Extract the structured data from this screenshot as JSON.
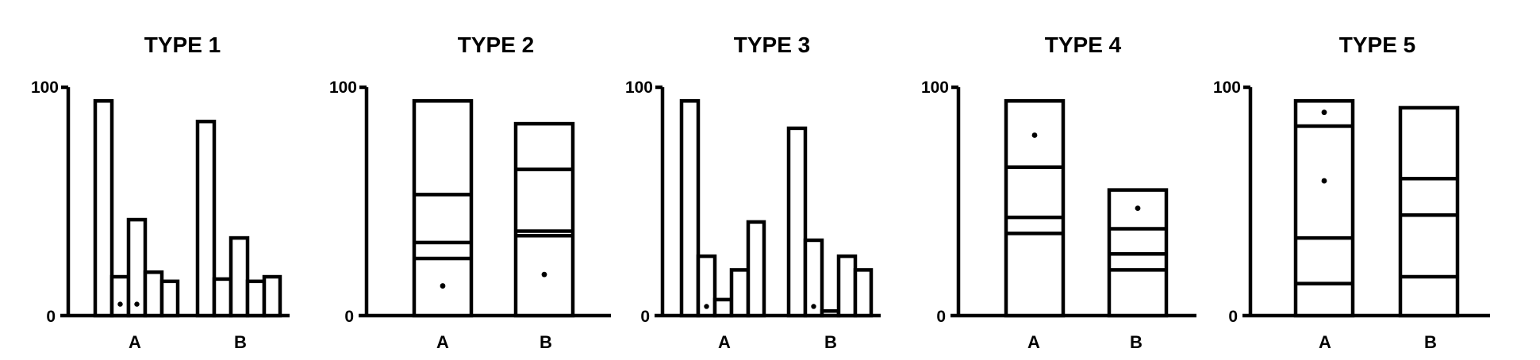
{
  "chart_data": [
    {
      "type": "bar",
      "style": "grouped",
      "title": "TYPE 1",
      "ylim": [
        0,
        100
      ],
      "yticks": [
        "0",
        "100"
      ],
      "categories": [
        "A",
        "B"
      ],
      "groups": [
        {
          "label": "A",
          "bars": [
            {
              "value": 94
            },
            {
              "value": 17,
              "dot": {
                "y": 5
              }
            },
            {
              "value": 42,
              "dot": {
                "y": 5
              }
            },
            {
              "value": 19
            },
            {
              "value": 15
            }
          ]
        },
        {
          "label": "B",
          "bars": [
            {
              "value": 85
            },
            {
              "value": 16
            },
            {
              "value": 34
            },
            {
              "value": 15
            },
            {
              "value": 17
            }
          ]
        }
      ]
    },
    {
      "type": "bar",
      "style": "stacked",
      "title": "TYPE 2",
      "ylim": [
        0,
        100
      ],
      "yticks": [
        "0",
        "100"
      ],
      "categories": [
        "A",
        "B"
      ],
      "groups": [
        {
          "label": "A",
          "total": 94,
          "dividers": [
            25,
            32,
            53
          ],
          "dots": [
            13
          ]
        },
        {
          "label": "B",
          "total": 84,
          "dividers": [
            35,
            37,
            64
          ],
          "dots": [
            18
          ]
        }
      ]
    },
    {
      "type": "bar",
      "style": "grouped",
      "title": "TYPE 3",
      "ylim": [
        0,
        100
      ],
      "yticks": [
        "0",
        "100"
      ],
      "categories": [
        "A",
        "B"
      ],
      "groups": [
        {
          "label": "A",
          "bars": [
            {
              "value": 94
            },
            {
              "value": 26,
              "dot": {
                "y": 4
              }
            },
            {
              "value": 7
            },
            {
              "value": 20
            },
            {
              "value": 41
            }
          ]
        },
        {
          "label": "B",
          "bars": [
            {
              "value": 82
            },
            {
              "value": 33,
              "dot": {
                "y": 4
              }
            },
            {
              "value": 2
            },
            {
              "value": 26
            },
            {
              "value": 20
            }
          ]
        }
      ]
    },
    {
      "type": "bar",
      "style": "stacked",
      "title": "TYPE 4",
      "ylim": [
        0,
        100
      ],
      "yticks": [
        "0",
        "100"
      ],
      "categories": [
        "A",
        "B"
      ],
      "groups": [
        {
          "label": "A",
          "total": 94,
          "dividers": [
            36,
            43,
            65
          ],
          "dots": [
            79
          ]
        },
        {
          "label": "B",
          "total": 55,
          "dividers": [
            20,
            27,
            38
          ],
          "dots": [
            47
          ]
        }
      ]
    },
    {
      "type": "bar",
      "style": "stacked",
      "title": "TYPE 5",
      "ylim": [
        0,
        100
      ],
      "yticks": [
        "0",
        "100"
      ],
      "categories": [
        "A",
        "B"
      ],
      "groups": [
        {
          "label": "A",
          "total": 94,
          "dividers": [
            14,
            34,
            83
          ],
          "dots": [
            59,
            89
          ]
        },
        {
          "label": "B",
          "total": 91,
          "dividers": [
            17,
            44,
            60
          ],
          "dots": []
        }
      ]
    }
  ]
}
